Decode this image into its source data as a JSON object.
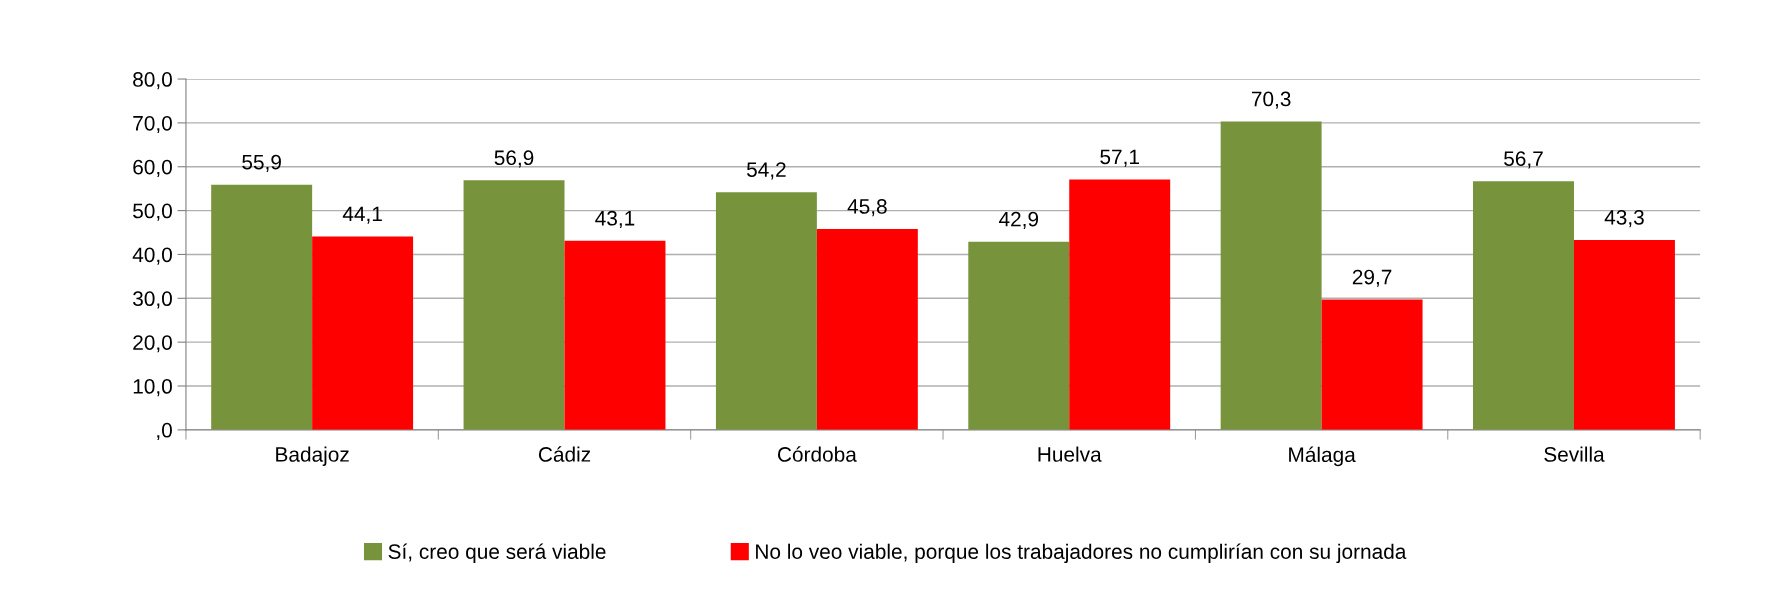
{
  "chart_data": {
    "type": "bar",
    "categories": [
      "Badajoz",
      "Cádiz",
      "Córdoba",
      "Huelva",
      "Málaga",
      "Sevilla"
    ],
    "series": [
      {
        "name": "Sí, creo que será viable",
        "color": "#77933c",
        "values": [
          55.9,
          56.9,
          54.2,
          42.9,
          70.3,
          56.7
        ],
        "value_labels": [
          "55,9",
          "56,9",
          "54,2",
          "42,9",
          "70,3",
          "56,7"
        ]
      },
      {
        "name": "No lo veo viable, porque los trabajadores no cumplirían con su jornada",
        "color": "#ff0000",
        "values": [
          44.1,
          43.1,
          45.8,
          57.1,
          29.7,
          43.3
        ],
        "value_labels": [
          "44,1",
          "43,1",
          "45,8",
          "57,1",
          "29,7",
          "43,3"
        ]
      }
    ],
    "ylim": [
      0,
      80
    ],
    "yticks": [
      {
        "value": 0,
        "label": ",0"
      },
      {
        "value": 10,
        "label": "10,0"
      },
      {
        "value": 20,
        "label": "20,0"
      },
      {
        "value": 30,
        "label": "30,0"
      },
      {
        "value": 40,
        "label": "40,0"
      },
      {
        "value": 50,
        "label": "50,0"
      },
      {
        "value": 60,
        "label": "60,0"
      },
      {
        "value": 70,
        "label": "70,0"
      },
      {
        "value": 80,
        "label": "80,0"
      }
    ],
    "grid": "y",
    "legend": "bottom"
  }
}
